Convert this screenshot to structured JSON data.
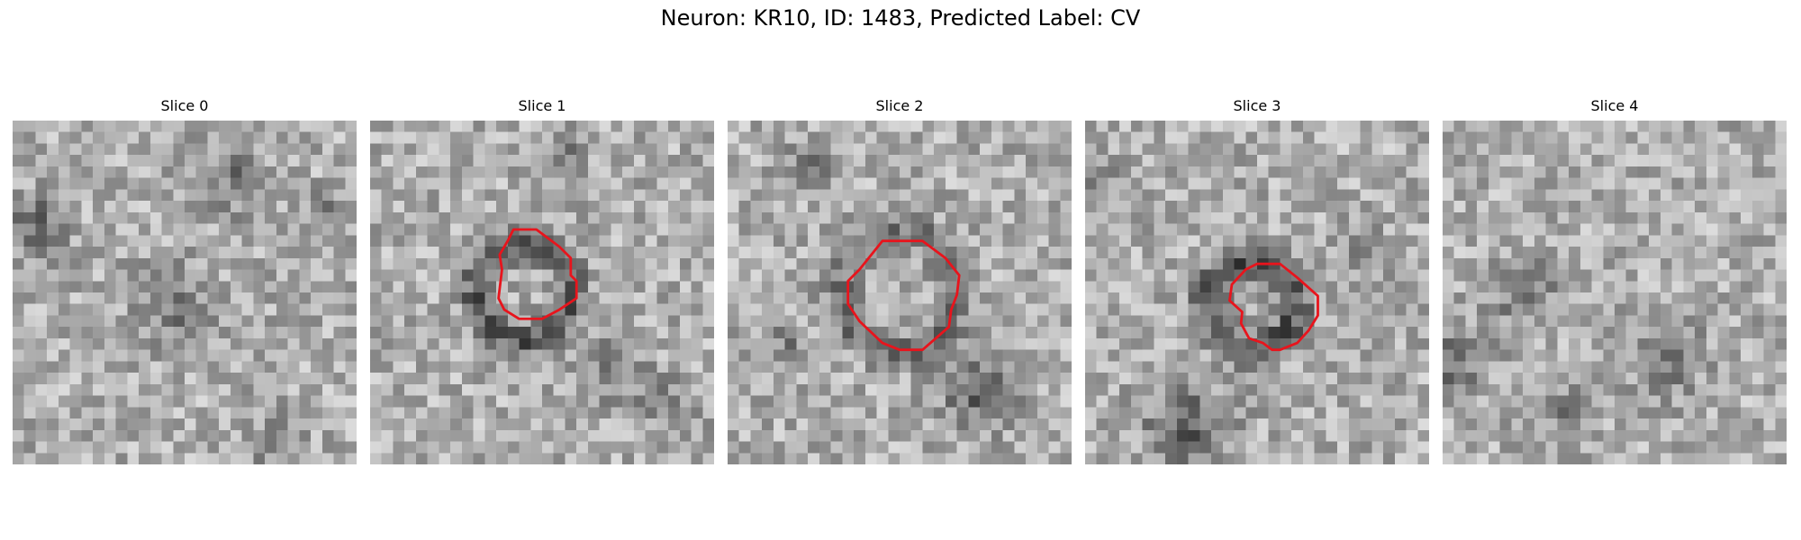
{
  "figure": {
    "title": "Neuron: KR10, ID: 1483, Predicted Label: CV"
  },
  "panels": [
    {
      "title": "Slice 0",
      "seed": 11,
      "has_contour": false
    },
    {
      "title": "Slice 1",
      "seed": 23,
      "has_contour": true
    },
    {
      "title": "Slice 2",
      "seed": 37,
      "has_contour": true
    },
    {
      "title": "Slice 3",
      "seed": 53,
      "has_contour": true
    },
    {
      "title": "Slice 4",
      "seed": 71,
      "has_contour": false
    }
  ],
  "colors": {
    "contour": "#e8141c",
    "background": "#ffffff"
  },
  "image_grid_size": 30
}
